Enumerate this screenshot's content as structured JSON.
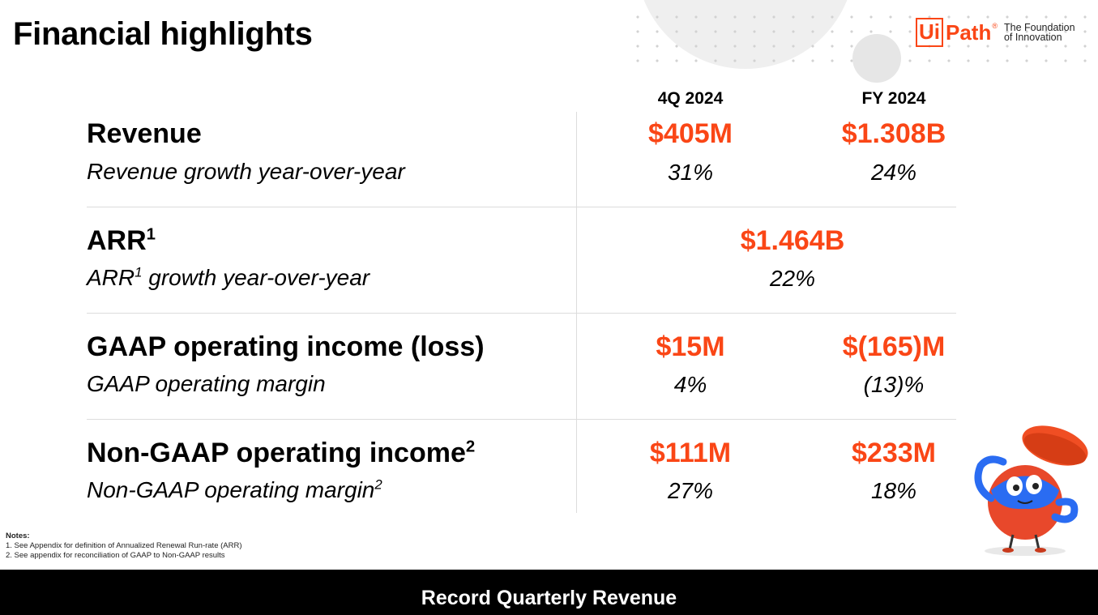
{
  "title": "Financial highlights",
  "logo": {
    "ui": "Ui",
    "path": "Path",
    "registered": "®",
    "tagline": "The Foundation of Innovation"
  },
  "columns": {
    "q": "4Q 2024",
    "fy": "FY 2024"
  },
  "rows": {
    "revenue": {
      "label": "Revenue",
      "sub": "Revenue growth year-over-year",
      "q_value": "$405M",
      "fy_value": "$1.308B",
      "q_pct": "31%",
      "fy_pct": "24%"
    },
    "arr": {
      "label": "ARR",
      "label_sup": "1",
      "sub_prefix": "ARR",
      "sub_sup": "1",
      "sub_suffix": " growth year-over-year",
      "value": "$1.464B",
      "pct": "22%"
    },
    "gaap": {
      "label": "GAAP operating income (loss)",
      "sub": "GAAP operating margin",
      "q_value": "$15M",
      "fy_value": "$(165)M",
      "q_pct": "4%",
      "fy_pct": "(13)%"
    },
    "nongaap": {
      "label": "Non-GAAP operating income",
      "label_sup": "2",
      "sub": "Non-GAAP operating margin",
      "sub_sup": "2",
      "q_value": "$111M",
      "fy_value": "$233M",
      "q_pct": "27%",
      "fy_pct": "18%"
    }
  },
  "notes": {
    "heading": "Notes:",
    "items": [
      "1. See Appendix for definition of Annualized Renewal Run-rate (ARR)",
      "2. See appendix for reconciliation of GAAP to Non-GAAP results"
    ]
  },
  "footer": "Record Quarterly Revenue",
  "colors": {
    "accent": "#fa4616",
    "footer_bg": "#000000",
    "divider": "#dcdcdc"
  },
  "icons": {
    "mascot": "uipath-mascot-illustration"
  }
}
